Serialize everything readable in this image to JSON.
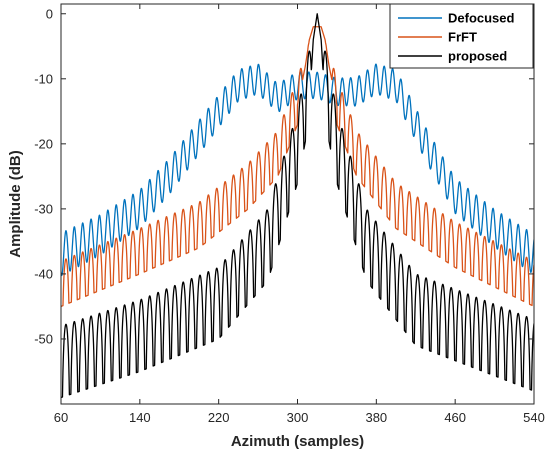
{
  "chart_data": {
    "type": "line",
    "xlabel": "Azimuth (samples)",
    "ylabel": "Amplitude (dB)",
    "xlim": [
      60,
      540
    ],
    "ylim": [
      -60,
      1.5
    ],
    "xticks": [
      60,
      140,
      220,
      300,
      380,
      460,
      540
    ],
    "yticks": [
      0,
      -10,
      -20,
      -30,
      -40,
      -50
    ],
    "grid": false,
    "legend_position": "top-right",
    "peak_x": 320,
    "series": [
      {
        "name": "Defocused",
        "color": "#0072BD",
        "description_values": "ripple ~5 dB, period ~9 samples",
        "envelope": [
          [
            60,
            -37
          ],
          [
            100,
            -34
          ],
          [
            140,
            -30
          ],
          [
            170,
            -25
          ],
          [
            200,
            -19
          ],
          [
            220,
            -15
          ],
          [
            240,
            -11
          ],
          [
            260,
            -10
          ],
          [
            280,
            -13
          ],
          [
            300,
            -11
          ],
          [
            320,
            -11
          ],
          [
            340,
            -12
          ],
          [
            360,
            -12
          ],
          [
            380,
            -10
          ],
          [
            400,
            -11
          ],
          [
            410,
            -14
          ],
          [
            430,
            -20
          ],
          [
            460,
            -28
          ],
          [
            500,
            -33
          ],
          [
            540,
            -37
          ]
        ],
        "ripple_amplitude": 2.0,
        "ripple_period": 8.5,
        "peaks": []
      },
      {
        "name": "FrFT",
        "color": "#D95319",
        "envelope": [
          [
            60,
            -38
          ],
          [
            140,
            -33
          ],
          [
            200,
            -29
          ],
          [
            250,
            -23
          ],
          [
            280,
            -18
          ],
          [
            300,
            -10
          ],
          [
            310,
            -5
          ],
          [
            320,
            -2
          ],
          [
            330,
            -5
          ],
          [
            340,
            -10
          ],
          [
            360,
            -18
          ],
          [
            400,
            -26
          ],
          [
            460,
            -32
          ],
          [
            540,
            -38
          ]
        ],
        "ripple_amplitude": 7.0,
        "ripple_period": 8.5,
        "mainlobe": [
          [
            300,
            -14
          ],
          [
            308,
            -8
          ],
          [
            312,
            -4
          ],
          [
            316,
            -2
          ],
          [
            320,
            -2
          ],
          [
            324,
            -2
          ],
          [
            328,
            -4
          ],
          [
            332,
            -8
          ],
          [
            340,
            -14
          ]
        ]
      },
      {
        "name": "proposed",
        "color": "#000000",
        "envelope": [
          [
            60,
            -48
          ],
          [
            140,
            -44
          ],
          [
            220,
            -39
          ],
          [
            270,
            -30
          ],
          [
            290,
            -20
          ],
          [
            300,
            -15
          ],
          [
            310,
            -7
          ],
          [
            320,
            0
          ],
          [
            330,
            -7
          ],
          [
            340,
            -15
          ],
          [
            350,
            -20
          ],
          [
            370,
            -30
          ],
          [
            420,
            -40
          ],
          [
            540,
            -47
          ]
        ],
        "ripple_amplitude": 11,
        "ripple_period": 8.5,
        "mainlobe": [
          [
            312,
            -14
          ],
          [
            316,
            -4
          ],
          [
            320,
            0
          ],
          [
            324,
            -4
          ],
          [
            328,
            -14
          ]
        ]
      }
    ]
  }
}
